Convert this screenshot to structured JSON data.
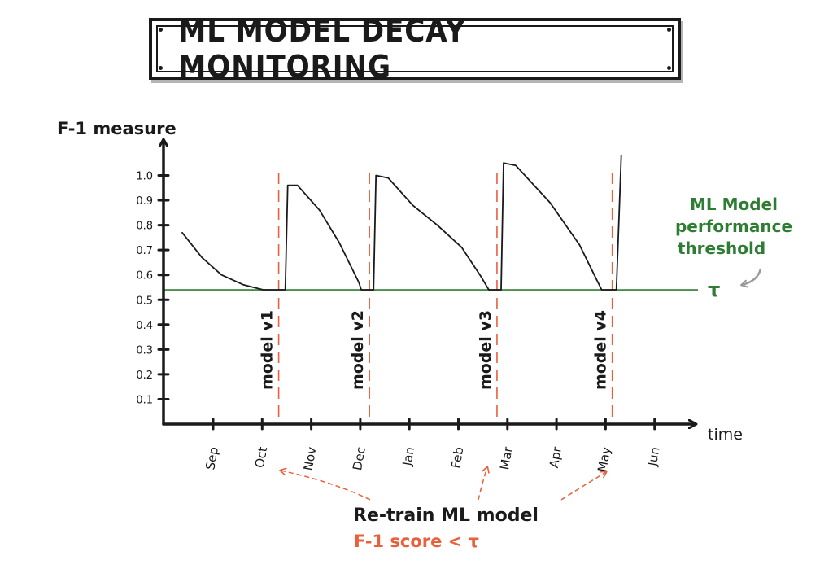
{
  "title": "ML MODEL DECAY  MONITORING",
  "colors": {
    "ink": "#1a1a1a",
    "threshold": "#2e7d32",
    "annotation": "#e8603c",
    "retrain_line": "#e8603c"
  },
  "chart_data": {
    "type": "line",
    "title": "ML MODEL DECAY  MONITORING",
    "ylabel": "F-1 measure",
    "xlabel": "time",
    "ylim": [
      0,
      1.1
    ],
    "yticks": [
      "0.1",
      "0.2",
      "0.3",
      "0.4",
      "0.5",
      "0.6",
      "0.7",
      "0.8",
      "0.9",
      "1.0"
    ],
    "x_ticks": [
      "Sep",
      "Oct",
      "Nov",
      "Dec",
      "Jan",
      "Feb",
      "Mar",
      "Apr",
      "May",
      "Jun"
    ],
    "threshold": {
      "value": 0.54,
      "symbol": "τ",
      "label_lines": [
        "ML Model",
        "performance",
        "threshold"
      ]
    },
    "series": [
      {
        "values": [
          [
            0.1,
            0.77
          ],
          [
            0.5,
            0.67
          ],
          [
            0.9,
            0.6
          ],
          [
            1.35,
            0.56
          ],
          [
            1.75,
            0.54
          ],
          [
            1.95,
            0.54
          ],
          [
            2.2,
            0.54
          ],
          [
            2.25,
            0.96
          ],
          [
            2.45,
            0.96
          ],
          [
            2.9,
            0.86
          ],
          [
            3.3,
            0.73
          ],
          [
            3.7,
            0.57
          ],
          [
            3.75,
            0.54
          ],
          [
            4.0,
            0.54
          ],
          [
            4.05,
            1.0
          ],
          [
            4.3,
            0.99
          ],
          [
            4.8,
            0.88
          ],
          [
            5.3,
            0.8
          ],
          [
            5.8,
            0.71
          ],
          [
            6.2,
            0.59
          ],
          [
            6.35,
            0.54
          ],
          [
            6.6,
            0.54
          ],
          [
            6.65,
            1.05
          ],
          [
            6.9,
            1.04
          ],
          [
            7.6,
            0.89
          ],
          [
            8.2,
            0.72
          ],
          [
            8.5,
            0.6
          ],
          [
            8.65,
            0.54
          ],
          [
            8.95,
            0.54
          ],
          [
            9.05,
            1.08
          ]
        ]
      }
    ],
    "retrains": [
      {
        "x": 2.0,
        "label": "model v1"
      },
      {
        "x": 3.85,
        "label": "model v2"
      },
      {
        "x": 6.45,
        "label": "model v3"
      },
      {
        "x": 8.8,
        "label": "model v4"
      }
    ],
    "annotation": {
      "line1": "Re-train  ML model",
      "line2": "F-1 score < τ"
    }
  }
}
